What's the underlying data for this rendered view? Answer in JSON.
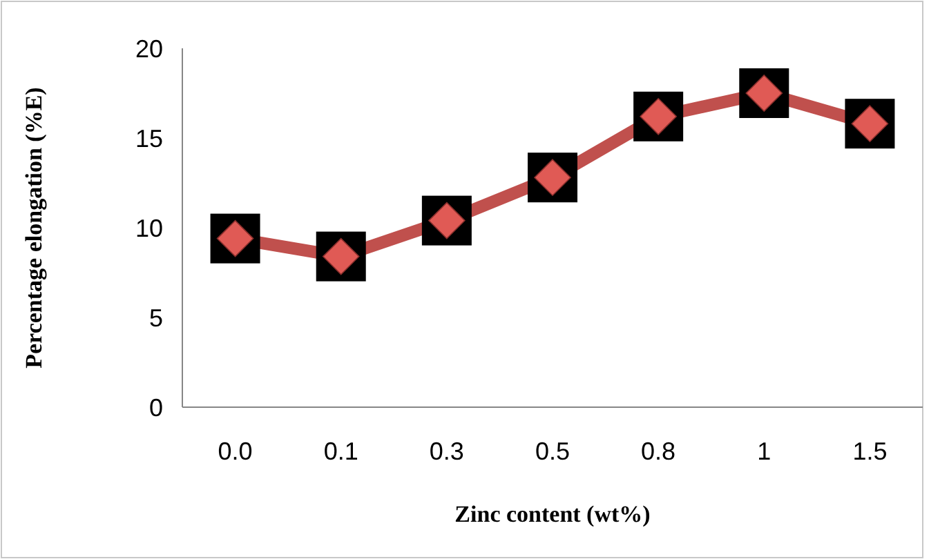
{
  "chart_data": {
    "type": "line",
    "xlabel": "Zinc content (wt%)",
    "ylabel": "Percentage elongation (%E)",
    "categories": [
      "0.0",
      "0.1",
      "0.3",
      "0.5",
      "0.8",
      "1",
      "1.5"
    ],
    "series": [
      {
        "color": "#c0504d",
        "values": [
          9.4,
          8.4,
          10.4,
          12.8,
          16.2,
          17.5,
          15.8
        ]
      }
    ],
    "ylim": [
      0,
      20
    ],
    "yticks": [
      0,
      5,
      10,
      15,
      20
    ],
    "grid": false,
    "marker": "square",
    "line_style": "solid"
  }
}
